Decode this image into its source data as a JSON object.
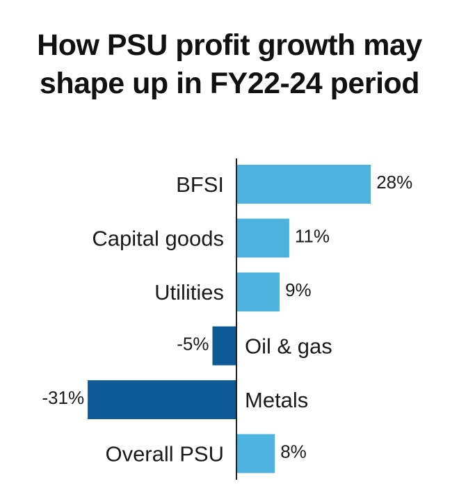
{
  "chart_data": {
    "type": "bar",
    "orientation": "horizontal",
    "title_lines": [
      "How PSU profit growth may",
      "shape up in FY22-24 period"
    ],
    "categories": [
      "BFSI",
      "Capital goods",
      "Utilities",
      "Oil & gas",
      "Metals",
      "Overall PSU"
    ],
    "values": [
      28,
      11,
      9,
      -5,
      -31,
      8
    ],
    "value_labels": [
      "28%",
      "11%",
      "9%",
      "-5%",
      "-31%",
      "8%"
    ],
    "unit": "%",
    "colors": {
      "positive": "#4fb3e0",
      "negative": "#0d5a97",
      "axis": "#222222"
    }
  }
}
